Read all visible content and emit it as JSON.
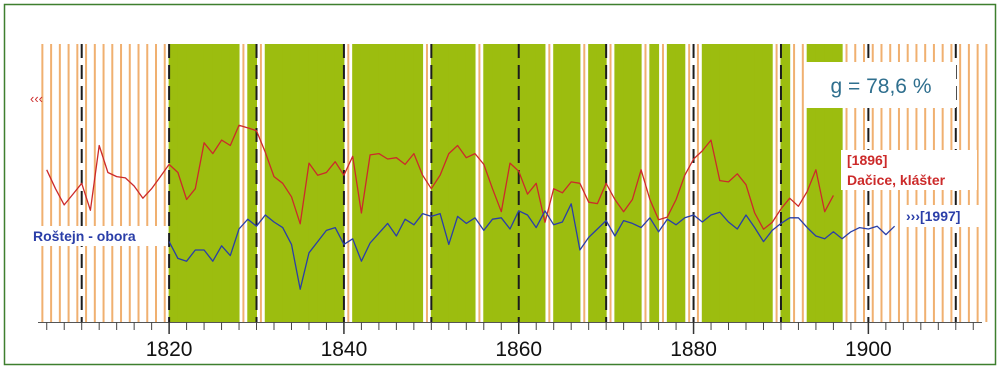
{
  "chart_data": {
    "type": "line",
    "title": "",
    "xlabel": "",
    "ylabel": "",
    "xlim": [
      1805,
      1913
    ],
    "x_ticks": [
      1820,
      1840,
      1860,
      1880,
      1900
    ],
    "grid": "vertical decade lines (dashed)",
    "background": "vertical stripes per year; green = synchronous years, orange lines = asynchronous years",
    "synchronous_year_ranges": [
      [
        1820,
        1827
      ],
      [
        1829,
        1829
      ],
      [
        1831,
        1839
      ],
      [
        1841,
        1848
      ],
      [
        1850,
        1854
      ],
      [
        1856,
        1862
      ],
      [
        1864,
        1866
      ],
      [
        1868,
        1869
      ],
      [
        1871,
        1873
      ],
      [
        1875,
        1875
      ],
      [
        1877,
        1878
      ],
      [
        1881,
        1888
      ],
      [
        1890,
        1890
      ],
      [
        1893,
        1896
      ]
    ],
    "annotation_gleichlaufigkeit": "g = 78,6 %",
    "colors": {
      "frame": "#3e7f2e",
      "green_band": "#9cbd0f",
      "orange_line": "#f0b070",
      "red_series": "#cc2a2a",
      "blue_series": "#2a3ea8",
      "annotation_text": "#2f6f8e"
    },
    "series": [
      {
        "name": "Dačice, klášter",
        "color": "#cc2a2a",
        "start_marker": "‹‹‹",
        "end_label": "[1896]",
        "x": [
          1806,
          1807,
          1808,
          1809,
          1810,
          1811,
          1812,
          1813,
          1814,
          1815,
          1816,
          1817,
          1818,
          1819,
          1820,
          1821,
          1822,
          1823,
          1824,
          1825,
          1826,
          1827,
          1828,
          1829,
          1830,
          1831,
          1832,
          1833,
          1834,
          1835,
          1836,
          1837,
          1838,
          1839,
          1840,
          1841,
          1842,
          1843,
          1844,
          1845,
          1846,
          1847,
          1848,
          1849,
          1850,
          1851,
          1852,
          1853,
          1854,
          1855,
          1856,
          1857,
          1858,
          1859,
          1860,
          1861,
          1862,
          1863,
          1864,
          1865,
          1866,
          1867,
          1868,
          1869,
          1870,
          1871,
          1872,
          1873,
          1874,
          1875,
          1876,
          1877,
          1878,
          1879,
          1880,
          1881,
          1882,
          1883,
          1884,
          1885,
          1886,
          1887,
          1888,
          1889,
          1890,
          1891,
          1892,
          1893,
          1894,
          1895,
          1896
        ],
        "values": [
          62,
          48,
          36,
          44,
          52,
          32,
          80,
          60,
          57,
          56,
          50,
          41,
          48,
          57,
          66,
          60,
          40,
          48,
          82,
          74,
          84,
          80,
          95,
          93,
          91,
          75,
          57,
          52,
          42,
          22,
          67,
          58,
          60,
          68,
          58,
          72,
          30,
          73,
          74,
          70,
          71,
          66,
          74,
          58,
          48,
          58,
          74,
          80,
          71,
          74,
          66,
          48,
          31,
          67,
          61,
          44,
          52,
          23,
          48,
          45,
          53,
          52,
          38,
          37,
          52,
          40,
          31,
          40,
          62,
          40,
          25,
          27,
          40,
          58,
          70,
          76,
          84,
          54,
          53,
          59,
          51,
          30,
          18,
          23,
          33,
          41,
          35,
          46,
          62,
          31,
          43
        ]
      },
      {
        "name": "Roštejn - obora",
        "color": "#2a3ea8",
        "end_label": "›››[1997]",
        "x": [
          1820,
          1821,
          1822,
          1823,
          1824,
          1825,
          1826,
          1827,
          1828,
          1829,
          1830,
          1831,
          1832,
          1833,
          1834,
          1835,
          1836,
          1837,
          1838,
          1839,
          1840,
          1841,
          1842,
          1843,
          1844,
          1845,
          1846,
          1847,
          1848,
          1849,
          1850,
          1851,
          1852,
          1853,
          1854,
          1855,
          1856,
          1857,
          1858,
          1859,
          1860,
          1861,
          1862,
          1863,
          1864,
          1865,
          1866,
          1867,
          1868,
          1869,
          1870,
          1871,
          1872,
          1873,
          1874,
          1875,
          1876,
          1877,
          1878,
          1879,
          1880,
          1881,
          1882,
          1883,
          1884,
          1885,
          1886,
          1887,
          1888,
          1889,
          1890,
          1891,
          1892,
          1893,
          1894,
          1895,
          1896,
          1897,
          1898,
          1899,
          1900,
          1901,
          1902,
          1903
        ],
        "values": [
          -4,
          -16,
          -18,
          -10,
          -10,
          -18,
          -7,
          -14,
          5,
          12,
          7,
          15,
          10,
          6,
          -6,
          -38,
          -12,
          -4,
          4,
          6,
          -6,
          -2,
          -18,
          -5,
          2,
          9,
          0,
          12,
          8,
          16,
          14,
          16,
          -6,
          14,
          9,
          13,
          4,
          12,
          13,
          5,
          18,
          15,
          6,
          18,
          8,
          10,
          23,
          -10,
          -1,
          5,
          11,
          0,
          11,
          9,
          6,
          13,
          3,
          12,
          8,
          13,
          15,
          10,
          15,
          17,
          10,
          5,
          15,
          6,
          -4,
          4,
          9,
          13,
          13,
          6,
          0,
          -2,
          3,
          -2,
          3,
          6,
          5,
          7,
          1,
          7
        ]
      }
    ]
  }
}
